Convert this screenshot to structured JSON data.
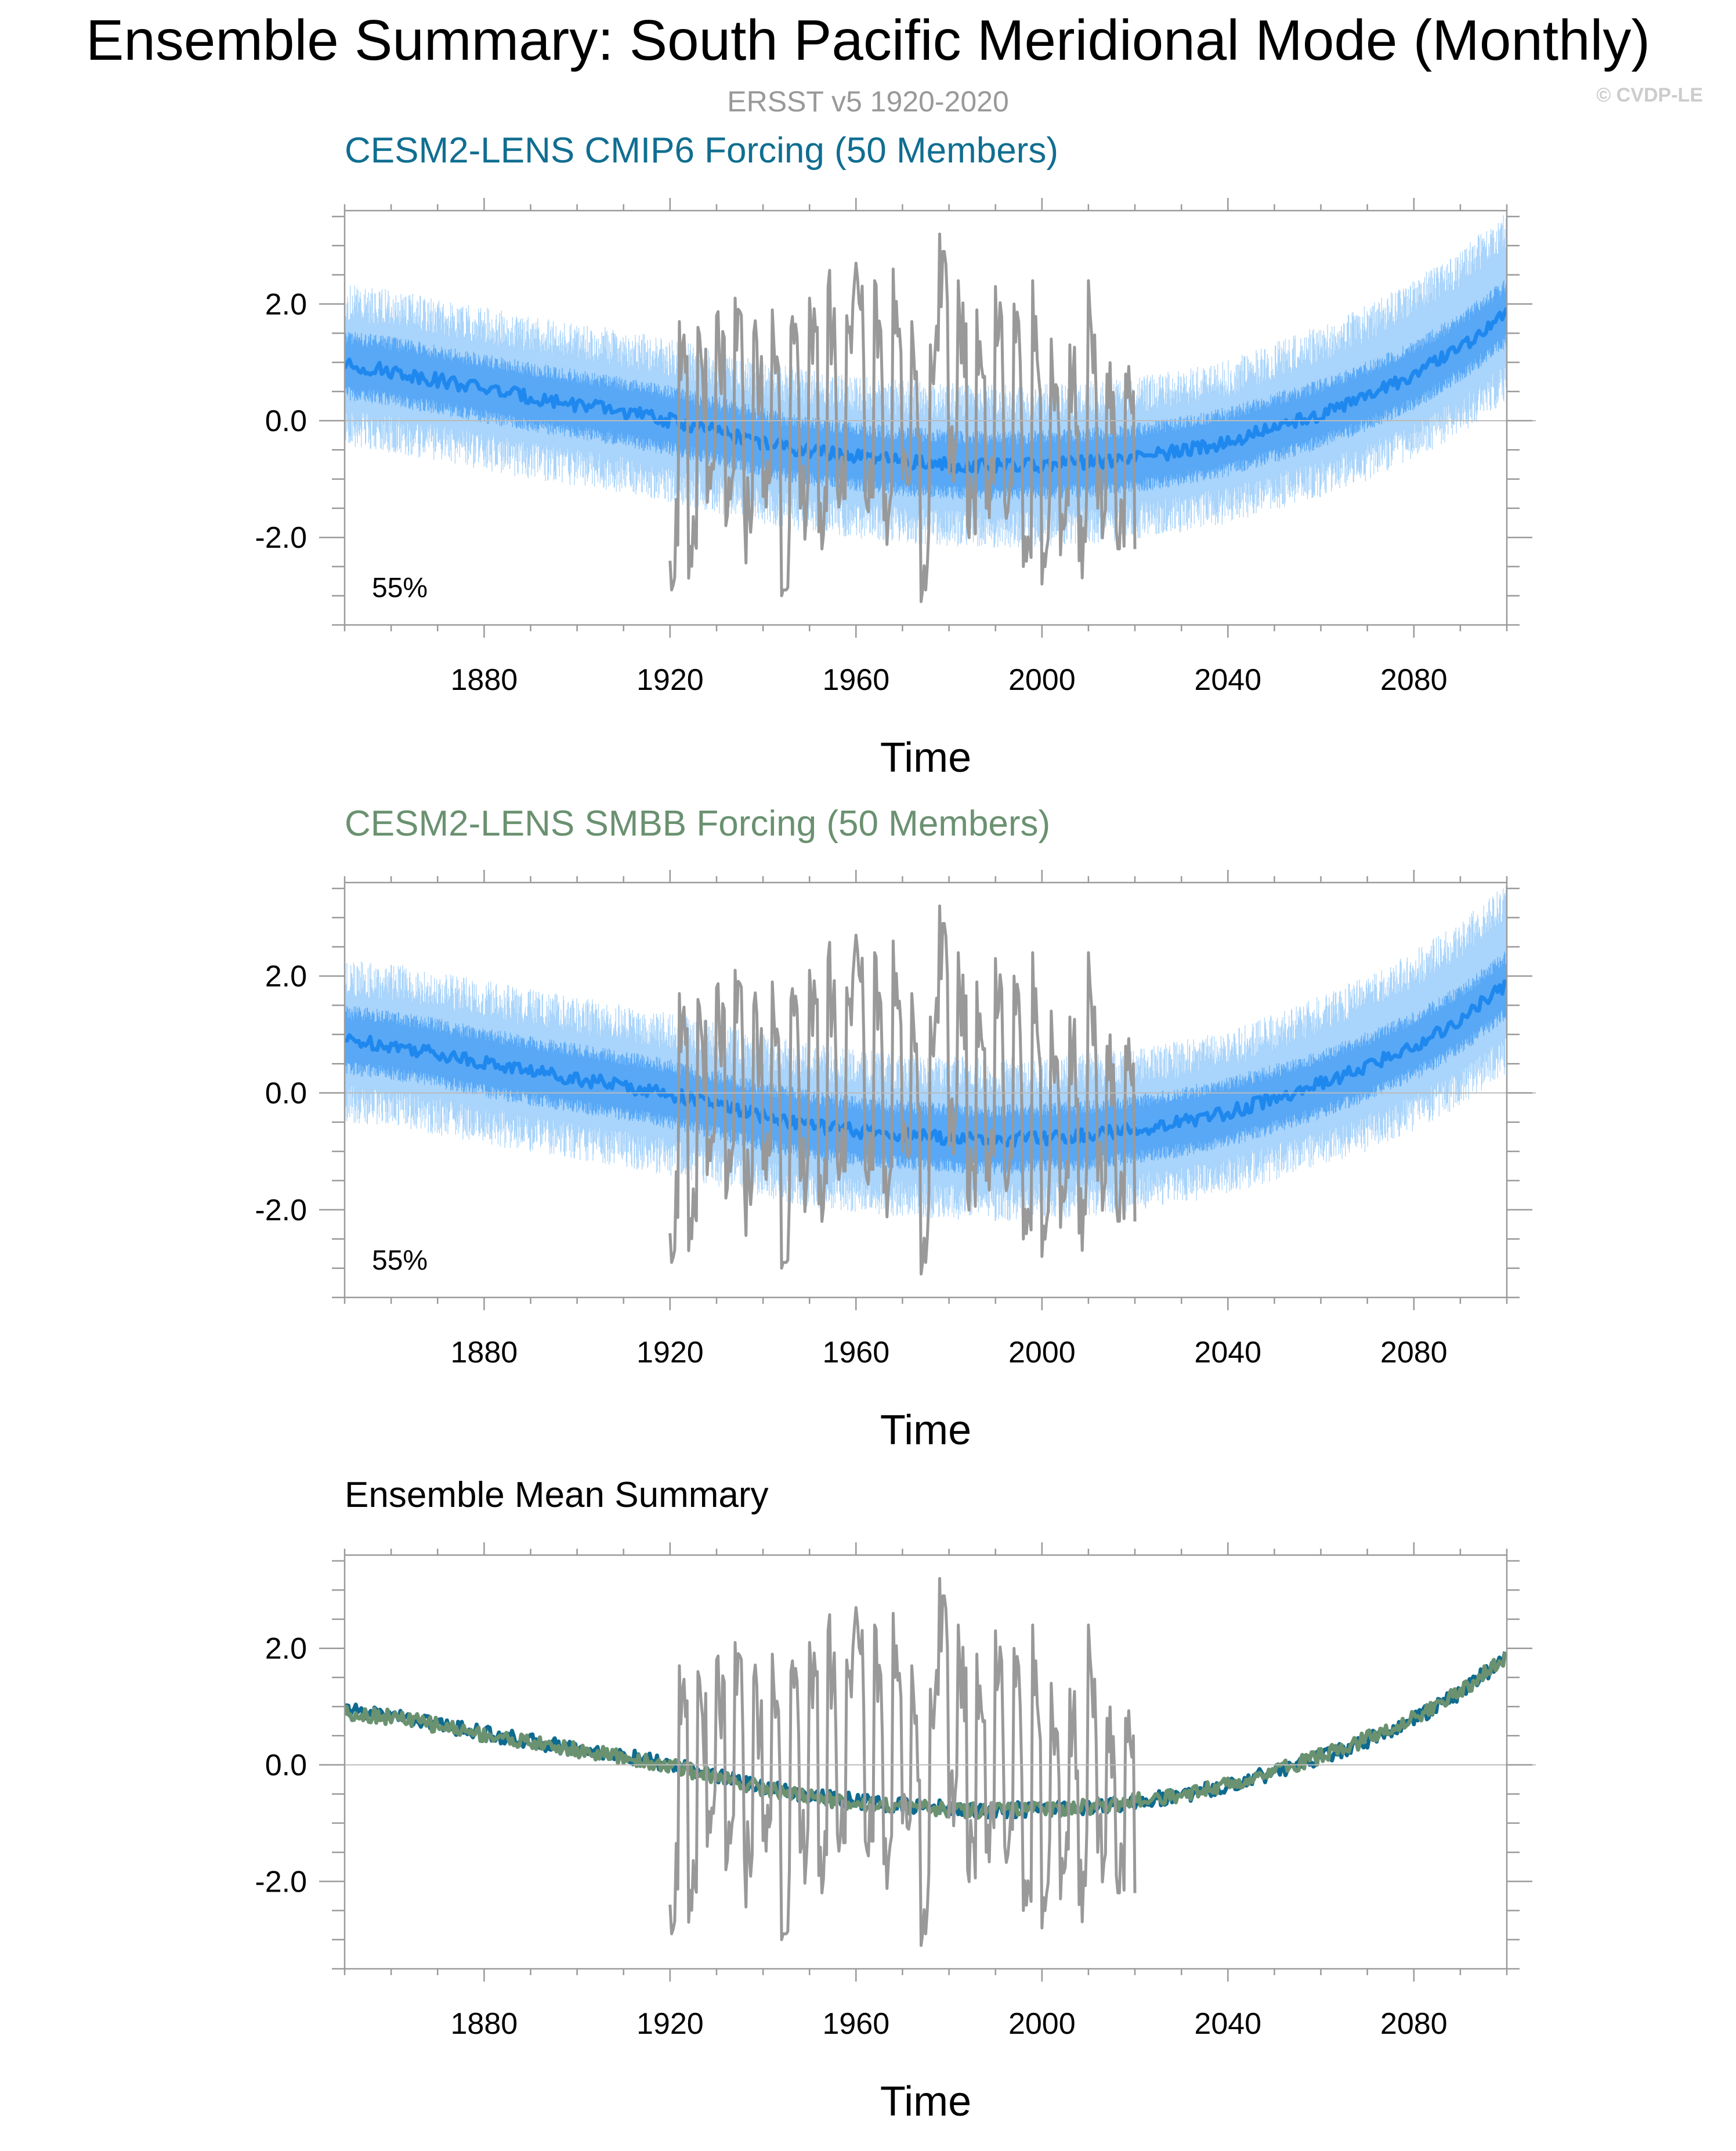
{
  "figure": {
    "title": "Ensemble Summary: South Pacific Meridional Mode (Monthly)",
    "subtitle": "ERSST v5 1920-2020",
    "copyright": "© CVDP-LE"
  },
  "colors": {
    "obs": "#999999",
    "ensemble_mean_cmip6": "#1f88ee",
    "ensemble_spread_outer": "#a9d4fb",
    "ensemble_spread_inner": "#4aa0f5",
    "title_cmip6": "#106e91",
    "title_smbb": "#6a9170",
    "mean_cmip6_line": "#0e6b8f",
    "mean_smbb_line": "#6b9270"
  },
  "chart_data": [
    {
      "type": "line",
      "title": "CESM2-LENS CMIP6 Forcing (50 Members)",
      "xlabel": "Time",
      "ylabel": "",
      "xlim": [
        1850,
        2100
      ],
      "ylim": [
        -3.5,
        3.6
      ],
      "xticks": [
        1880,
        1920,
        1960,
        2000,
        2040,
        2080
      ],
      "xtick_labels": [
        "1880",
        "1920",
        "1960",
        "2000",
        "2040",
        "2080"
      ],
      "yticks": [
        -2.0,
        0.0,
        2.0
      ],
      "ytick_labels": [
        "-2.0",
        "0.0",
        "2.0"
      ],
      "annotation": "55%",
      "series": [
        {
          "name": "Ensemble mean",
          "kind": "mean_with_spread",
          "x": [
            1850,
            1860,
            1870,
            1880,
            1890,
            1900,
            1910,
            1920,
            1930,
            1940,
            1950,
            1960,
            1970,
            1980,
            1990,
            2000,
            2010,
            2020,
            2030,
            2040,
            2050,
            2060,
            2070,
            2080,
            2090,
            2100
          ],
          "values": [
            0.95,
            0.85,
            0.7,
            0.55,
            0.4,
            0.28,
            0.15,
            0.0,
            -0.18,
            -0.38,
            -0.52,
            -0.62,
            -0.7,
            -0.75,
            -0.78,
            -0.76,
            -0.72,
            -0.64,
            -0.52,
            -0.36,
            -0.12,
            0.12,
            0.42,
            0.78,
            1.25,
            1.85
          ],
          "spread_outer": 1.4,
          "spread_inner": 0.6
        },
        {
          "name": "ERSST v5",
          "kind": "observations",
          "x": [
            1920,
            1922,
            1924,
            1926,
            1928,
            1930,
            1932,
            1934,
            1936,
            1938,
            1940,
            1942,
            1944,
            1946,
            1948,
            1950,
            1952,
            1954,
            1956,
            1958,
            1960,
            1962,
            1964,
            1966,
            1968,
            1970,
            1972,
            1974,
            1976,
            1978,
            1980,
            1982,
            1984,
            1986,
            1988,
            1990,
            1992,
            1994,
            1996,
            1998,
            2000,
            2002,
            2004,
            2006,
            2008,
            2010,
            2012,
            2014,
            2016,
            2018,
            2020
          ],
          "values": [
            -2.4,
            1.7,
            -2.7,
            1.6,
            -1.4,
            1.8,
            -1.8,
            2.1,
            -1.6,
            1.5,
            -1.3,
            1.9,
            -3.0,
            1.6,
            -1.5,
            2.1,
            -1.9,
            2.3,
            -1.2,
            1.8,
            2.7,
            -1.3,
            2.4,
            -1.7,
            2.6,
            -1.0,
            1.7,
            -3.1,
            1.3,
            3.2,
            -0.9,
            2.4,
            -1.8,
            1.9,
            -1.5,
            2.3,
            -1.4,
            2.0,
            -2.5,
            2.4,
            -2.8,
            1.4,
            -2.3,
            1.3,
            -2.4,
            2.4,
            -1.5,
            0.8,
            -1.9,
            0.8,
            -2.2
          ]
        }
      ]
    },
    {
      "type": "line",
      "title": "CESM2-LENS SMBB Forcing (50 Members)",
      "xlabel": "Time",
      "ylabel": "",
      "xlim": [
        1850,
        2100
      ],
      "ylim": [
        -3.5,
        3.6
      ],
      "xticks": [
        1880,
        1920,
        1960,
        2000,
        2040,
        2080
      ],
      "xtick_labels": [
        "1880",
        "1920",
        "1960",
        "2000",
        "2040",
        "2080"
      ],
      "yticks": [
        -2.0,
        0.0,
        2.0
      ],
      "ytick_labels": [
        "-2.0",
        "0.0",
        "2.0"
      ],
      "annotation": "55%",
      "series": [
        {
          "name": "Ensemble mean",
          "kind": "mean_with_spread",
          "x": [
            1850,
            1860,
            1870,
            1880,
            1890,
            1900,
            1910,
            1920,
            1930,
            1940,
            1950,
            1960,
            1970,
            1980,
            1990,
            2000,
            2010,
            2020,
            2030,
            2040,
            2050,
            2060,
            2070,
            2080,
            2090,
            2100
          ],
          "values": [
            0.9,
            0.82,
            0.68,
            0.52,
            0.38,
            0.25,
            0.12,
            -0.02,
            -0.2,
            -0.4,
            -0.55,
            -0.65,
            -0.72,
            -0.77,
            -0.8,
            -0.77,
            -0.72,
            -0.62,
            -0.5,
            -0.33,
            -0.1,
            0.15,
            0.45,
            0.8,
            1.25,
            1.85
          ],
          "spread_outer": 1.4,
          "spread_inner": 0.6
        },
        {
          "name": "ERSST v5",
          "kind": "observations",
          "x": [
            1920,
            1922,
            1924,
            1926,
            1928,
            1930,
            1932,
            1934,
            1936,
            1938,
            1940,
            1942,
            1944,
            1946,
            1948,
            1950,
            1952,
            1954,
            1956,
            1958,
            1960,
            1962,
            1964,
            1966,
            1968,
            1970,
            1972,
            1974,
            1976,
            1978,
            1980,
            1982,
            1984,
            1986,
            1988,
            1990,
            1992,
            1994,
            1996,
            1998,
            2000,
            2002,
            2004,
            2006,
            2008,
            2010,
            2012,
            2014,
            2016,
            2018,
            2020
          ],
          "values": [
            -2.4,
            1.7,
            -2.7,
            1.6,
            -1.4,
            1.8,
            -1.8,
            2.1,
            -1.6,
            1.5,
            -1.3,
            1.9,
            -3.0,
            1.6,
            -1.5,
            2.1,
            -1.9,
            2.3,
            -1.2,
            1.8,
            2.7,
            -1.3,
            2.4,
            -1.7,
            2.6,
            -1.0,
            1.7,
            -3.1,
            1.3,
            3.2,
            -0.9,
            2.4,
            -1.8,
            1.9,
            -1.5,
            2.3,
            -1.4,
            2.0,
            -2.5,
            2.4,
            -2.8,
            1.4,
            -2.3,
            1.3,
            -2.4,
            2.4,
            -1.5,
            0.8,
            -1.9,
            0.8,
            -2.2
          ]
        }
      ]
    },
    {
      "type": "line",
      "title": "Ensemble Mean Summary",
      "xlabel": "Time",
      "ylabel": "",
      "xlim": [
        1850,
        2100
      ],
      "ylim": [
        -3.5,
        3.6
      ],
      "xticks": [
        1880,
        1920,
        1960,
        2000,
        2040,
        2080
      ],
      "xtick_labels": [
        "1880",
        "1920",
        "1960",
        "2000",
        "2040",
        "2080"
      ],
      "yticks": [
        -2.0,
        0.0,
        2.0
      ],
      "ytick_labels": [
        "-2.0",
        "0.0",
        "2.0"
      ],
      "series": [
        {
          "name": "CESM2-LENS CMIP6 ensemble mean",
          "kind": "mean_line",
          "color_key": "mean_cmip6_line",
          "x": [
            1850,
            1860,
            1870,
            1880,
            1890,
            1900,
            1910,
            1920,
            1930,
            1940,
            1950,
            1960,
            1970,
            1980,
            1990,
            2000,
            2010,
            2020,
            2030,
            2040,
            2050,
            2060,
            2070,
            2080,
            2090,
            2100
          ],
          "values": [
            0.95,
            0.85,
            0.7,
            0.55,
            0.4,
            0.28,
            0.15,
            0.0,
            -0.18,
            -0.38,
            -0.52,
            -0.62,
            -0.7,
            -0.75,
            -0.78,
            -0.76,
            -0.72,
            -0.64,
            -0.52,
            -0.36,
            -0.12,
            0.12,
            0.42,
            0.78,
            1.25,
            1.85
          ]
        },
        {
          "name": "CESM2-LENS SMBB ensemble mean",
          "kind": "mean_line",
          "color_key": "mean_smbb_line",
          "x": [
            1850,
            1860,
            1870,
            1880,
            1890,
            1900,
            1910,
            1920,
            1930,
            1940,
            1950,
            1960,
            1970,
            1980,
            1990,
            2000,
            2010,
            2020,
            2030,
            2040,
            2050,
            2060,
            2070,
            2080,
            2090,
            2100
          ],
          "values": [
            0.9,
            0.82,
            0.68,
            0.52,
            0.38,
            0.25,
            0.12,
            -0.02,
            -0.2,
            -0.4,
            -0.55,
            -0.65,
            -0.72,
            -0.77,
            -0.8,
            -0.77,
            -0.72,
            -0.62,
            -0.5,
            -0.33,
            -0.1,
            0.15,
            0.45,
            0.8,
            1.25,
            1.85
          ]
        },
        {
          "name": "ERSST v5",
          "kind": "observations",
          "x": [
            1920,
            1922,
            1924,
            1926,
            1928,
            1930,
            1932,
            1934,
            1936,
            1938,
            1940,
            1942,
            1944,
            1946,
            1948,
            1950,
            1952,
            1954,
            1956,
            1958,
            1960,
            1962,
            1964,
            1966,
            1968,
            1970,
            1972,
            1974,
            1976,
            1978,
            1980,
            1982,
            1984,
            1986,
            1988,
            1990,
            1992,
            1994,
            1996,
            1998,
            2000,
            2002,
            2004,
            2006,
            2008,
            2010,
            2012,
            2014,
            2016,
            2018,
            2020
          ],
          "values": [
            -2.4,
            1.7,
            -2.7,
            1.6,
            -1.4,
            1.8,
            -1.8,
            2.1,
            -1.6,
            1.5,
            -1.3,
            1.9,
            -3.0,
            1.6,
            -1.5,
            2.1,
            -1.9,
            2.3,
            -1.2,
            1.8,
            2.7,
            -1.3,
            2.4,
            -1.7,
            2.6,
            -1.0,
            1.7,
            -3.1,
            1.3,
            3.2,
            -0.9,
            2.4,
            -1.8,
            1.9,
            -1.5,
            2.3,
            -1.4,
            2.0,
            -2.5,
            2.4,
            -2.8,
            1.4,
            -2.3,
            1.3,
            -2.4,
            2.4,
            -1.5,
            0.8,
            -1.9,
            0.8,
            -2.2
          ]
        }
      ]
    }
  ]
}
